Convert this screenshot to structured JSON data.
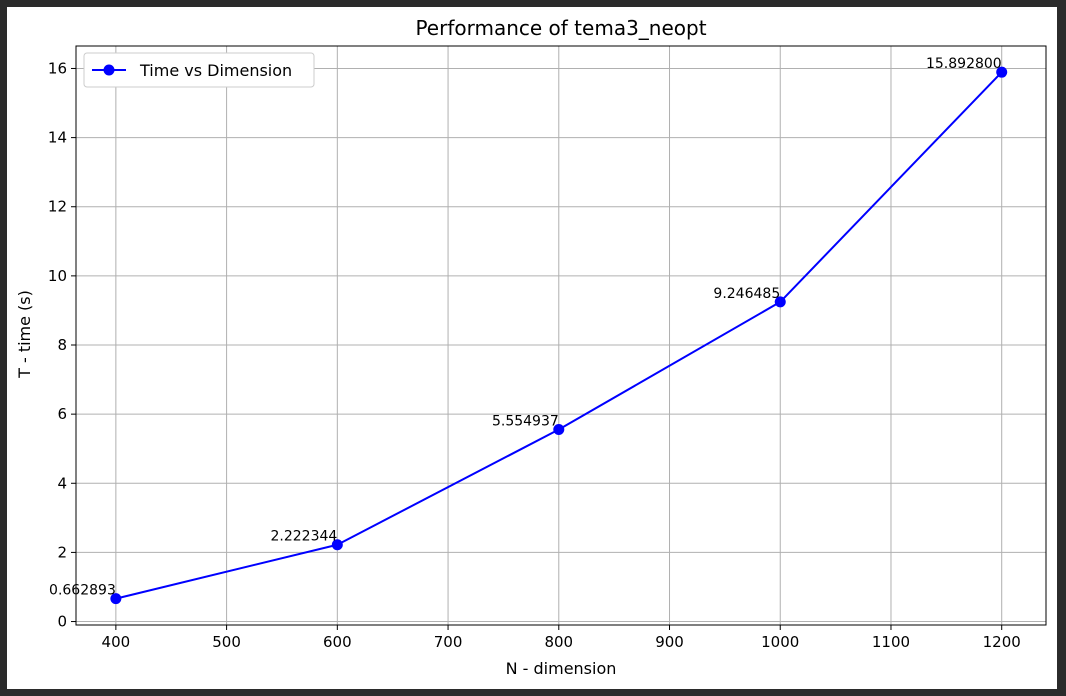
{
  "chart_data": {
    "type": "line",
    "title": "Performance of tema3_neopt",
    "xlabel": "N - dimension",
    "ylabel": "T - time (s)",
    "xlim": [
      364,
      1240
    ],
    "ylim": [
      -0.1,
      16.65
    ],
    "xticks": [
      400,
      500,
      600,
      700,
      800,
      900,
      1000,
      1100,
      1200
    ],
    "yticks": [
      0,
      2,
      4,
      6,
      8,
      10,
      12,
      14,
      16
    ],
    "grid": true,
    "legend_position": "top-left",
    "series": [
      {
        "name": "Time vs Dimension",
        "color": "#0000ff",
        "marker": "circle",
        "x": [
          400,
          600,
          800,
          1000,
          1200
        ],
        "y": [
          0.662893,
          2.222344,
          5.554937,
          9.246485,
          15.8928
        ],
        "labels": [
          "0.662893",
          "2.222344",
          "5.554937",
          "9.246485",
          "15.892800"
        ]
      }
    ]
  }
}
